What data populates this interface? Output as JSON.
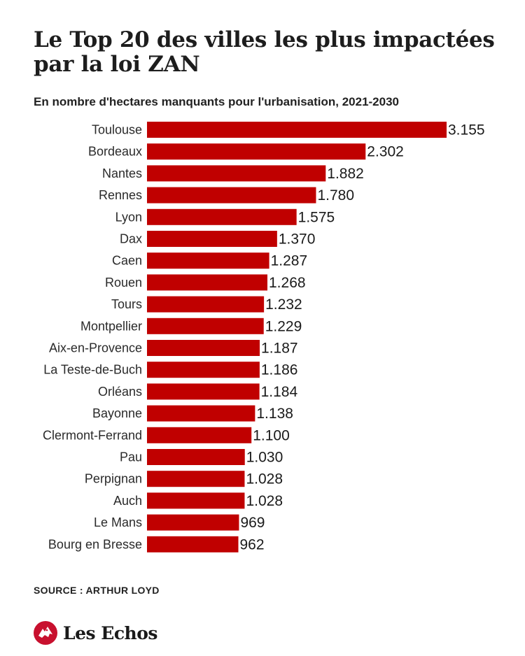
{
  "header": {
    "title": "Le Top 20 des villes les plus impactées par la loi ZAN",
    "subtitle": "En nombre d'hectares manquants pour l'urbanisation, 2021-2030"
  },
  "footer": {
    "source": "SOURCE : ARTHUR LOYD",
    "brand": "Les Echos"
  },
  "colors": {
    "bar": "#c00000",
    "brand": "#c8102e"
  },
  "chart_data": {
    "type": "bar",
    "orientation": "horizontal",
    "title": "Le Top 20 des villes les plus impactées par la loi ZAN",
    "subtitle": "En nombre d'hectares manquants pour l'urbanisation, 2021-2030",
    "categories": [
      "Toulouse",
      "Bordeaux",
      "Nantes",
      "Rennes",
      "Lyon",
      "Dax",
      "Caen",
      "Rouen",
      "Tours",
      "Montpellier",
      "Aix-en-Provence",
      "La Teste-de-Buch",
      "Orléans",
      "Bayonne",
      "Clermont-Ferrand",
      "Pau",
      "Perpignan",
      "Auch",
      "Le Mans",
      "Bourg en Bresse"
    ],
    "values": [
      3155,
      2302,
      1882,
      1780,
      1575,
      1370,
      1287,
      1268,
      1232,
      1229,
      1187,
      1186,
      1184,
      1138,
      1100,
      1030,
      1028,
      1028,
      969,
      962
    ],
    "value_labels": [
      "3.155",
      "2.302",
      "1.882",
      "1.780",
      "1.575",
      "1.370",
      "1.287",
      "1.268",
      "1.232",
      "1.229",
      "1.187",
      "1.186",
      "1.184",
      "1.138",
      "1.100",
      "1.030",
      "1.028",
      "1.028",
      "969",
      "962"
    ],
    "xlim": [
      0,
      3155
    ],
    "grid": false,
    "source": "SOURCE : ARTHUR LOYD"
  }
}
